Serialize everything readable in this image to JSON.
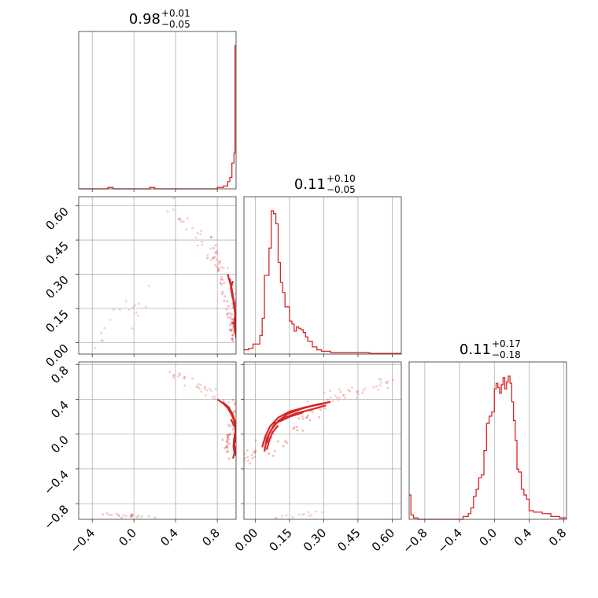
{
  "chart_data": {
    "type": "corner",
    "color": "#d62728",
    "params": [
      {
        "median": "0.98",
        "plus": "+0.01",
        "minus": "−0.05",
        "range": [
          -0.53,
          0.98
        ],
        "ticks": [
          -0.4,
          0.0,
          0.4,
          0.8
        ],
        "tick_labels": [
          "−0.4",
          "0.0",
          "0.4",
          "0.8"
        ]
      },
      {
        "median": "0.11",
        "plus": "+0.10",
        "minus": "−0.05",
        "range": [
          -0.05,
          0.64
        ],
        "ticks": [
          0.0,
          0.15,
          0.3,
          0.45,
          0.6
        ],
        "tick_labels": [
          "0.00",
          "0.15",
          "0.30",
          "0.45",
          "0.60"
        ]
      },
      {
        "median": "0.11",
        "plus": "+0.17",
        "minus": "−0.18",
        "range": [
          -0.98,
          0.83
        ],
        "ticks": [
          -0.8,
          -0.4,
          0.0,
          0.4,
          0.8
        ],
        "tick_labels": [
          "−0.8",
          "−0.4",
          "0.0",
          "0.4",
          "0.8"
        ]
      }
    ],
    "hist_0": {
      "edges_x": [
        -0.53,
        -0.4,
        -0.3,
        -0.25,
        -0.2,
        -0.1,
        0.1,
        0.15,
        0.2,
        0.8,
        0.86,
        0.9,
        0.92,
        0.94,
        0.96,
        0.97,
        0.98
      ],
      "density": [
        0,
        0,
        0,
        0.01,
        0,
        0,
        0,
        0.01,
        0,
        0.01,
        0.02,
        0.05,
        0.08,
        0.18,
        0.25,
        1.0
      ]
    },
    "hist_1": {
      "edges_x": [
        -0.05,
        -0.03,
        -0.01,
        0.0,
        0.02,
        0.03,
        0.04,
        0.06,
        0.07,
        0.08,
        0.09,
        0.1,
        0.11,
        0.12,
        0.13,
        0.14,
        0.15,
        0.16,
        0.17,
        0.18,
        0.19,
        0.2,
        0.21,
        0.22,
        0.23,
        0.24,
        0.25,
        0.26,
        0.27,
        0.28,
        0.29,
        0.31,
        0.33,
        0.37,
        0.42,
        0.5,
        0.64
      ],
      "density": [
        0.03,
        0.04,
        0.07,
        0.07,
        0.13,
        0.25,
        0.55,
        0.74,
        1.0,
        0.98,
        0.91,
        0.64,
        0.5,
        0.43,
        0.33,
        0.33,
        0.23,
        0.21,
        0.16,
        0.19,
        0.18,
        0.17,
        0.15,
        0.12,
        0.09,
        0.09,
        0.05,
        0.05,
        0.03,
        0.03,
        0.02,
        0.02,
        0.01,
        0.01,
        0.01,
        0.005
      ]
    },
    "hist_2": {
      "edges_x": [
        -0.98,
        -0.96,
        -0.93,
        -0.88,
        -0.36,
        -0.3,
        -0.27,
        -0.24,
        -0.21,
        -0.18,
        -0.15,
        -0.12,
        -0.09,
        -0.06,
        -0.03,
        0.0,
        0.02,
        0.04,
        0.06,
        0.08,
        0.1,
        0.12,
        0.14,
        0.16,
        0.18,
        0.2,
        0.22,
        0.24,
        0.26,
        0.28,
        0.31,
        0.34,
        0.37,
        0.4,
        0.45,
        0.55,
        0.65,
        0.75,
        0.83
      ],
      "density": [
        0.17,
        0.03,
        0.01,
        0,
        0.02,
        0.04,
        0.08,
        0.16,
        0.21,
        0.29,
        0.31,
        0.48,
        0.67,
        0.72,
        0.75,
        0.91,
        0.95,
        0.92,
        0.88,
        0.94,
        0.99,
        0.91,
        0.96,
        1.0,
        0.95,
        0.82,
        0.69,
        0.55,
        0.35,
        0.33,
        0.21,
        0.17,
        0.14,
        0.06,
        0.05,
        0.04,
        0.02,
        0.01
      ]
    }
  }
}
